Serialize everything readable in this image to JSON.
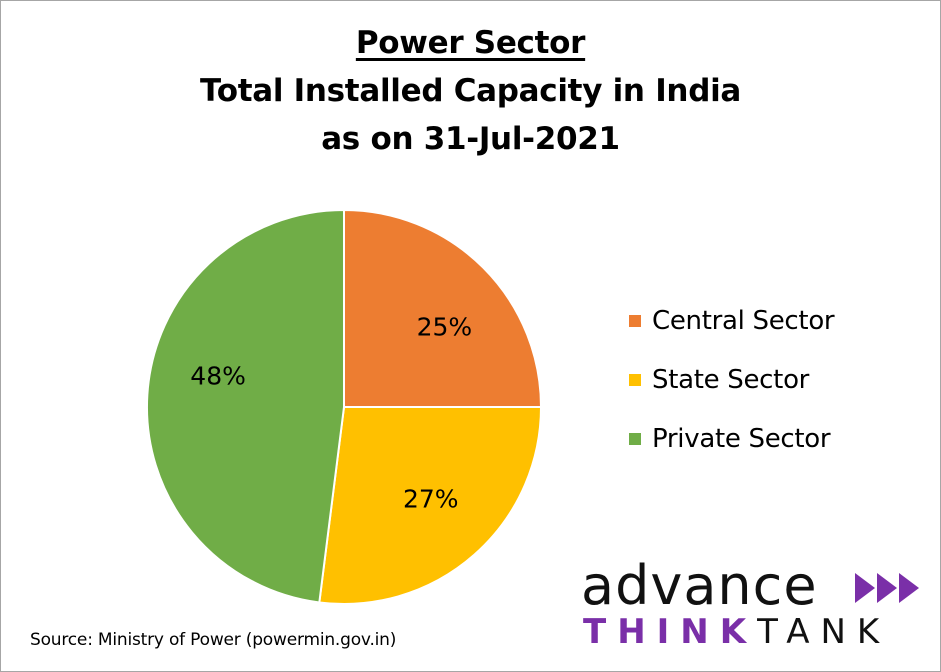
{
  "colors": {
    "central": "#ed7d31",
    "state": "#ffc000",
    "private": "#70ad47",
    "brand_purple": "#7a2fa8"
  },
  "chart_data": {
    "type": "pie",
    "title": [
      "Power Sector",
      "Total Installed Capacity in India",
      "as on 31-Jul-2021"
    ],
    "categories": [
      "Central Sector",
      "State Sector",
      "Private Sector"
    ],
    "values": [
      25,
      27,
      48
    ],
    "labels": [
      "25%",
      "27%",
      "48%"
    ],
    "colors": [
      "#ed7d31",
      "#ffc000",
      "#70ad47"
    ],
    "legend_position": "right"
  },
  "legend": {
    "items": [
      {
        "label": "Central Sector",
        "color": "#ed7d31"
      },
      {
        "label": "State Sector",
        "color": "#ffc000"
      },
      {
        "label": "Private Sector",
        "color": "#70ad47"
      }
    ]
  },
  "source": "Source: Ministry of Power (powermin.gov.in)",
  "brand": {
    "word": "advance",
    "think": "THINK",
    "tank": "TANK",
    "arrows_icon": "triple-chevron-icon"
  }
}
